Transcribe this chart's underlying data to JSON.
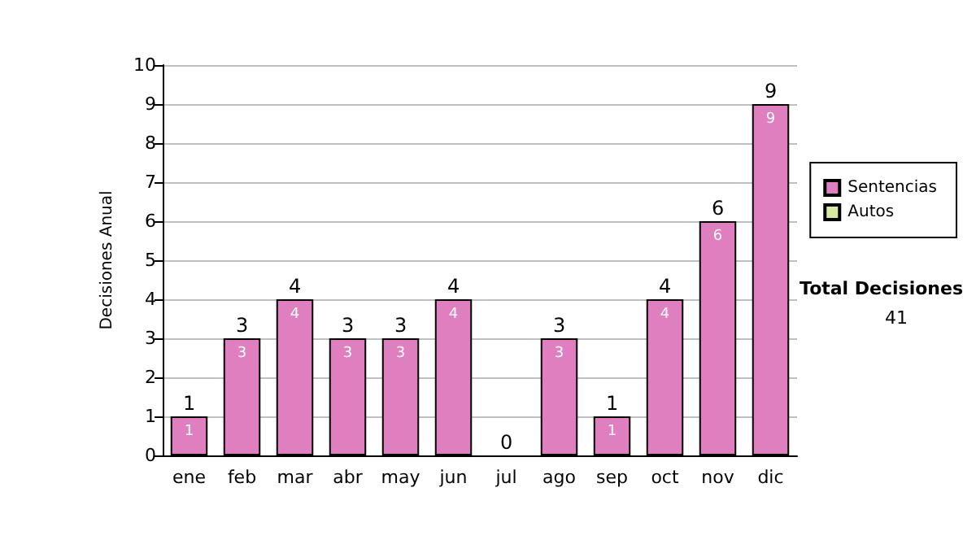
{
  "chart_data": {
    "type": "bar",
    "stacked": true,
    "ylabel": "Decisiones Anual",
    "categories": [
      "ene",
      "feb",
      "mar",
      "abr",
      "may",
      "jun",
      "jul",
      "ago",
      "sep",
      "oct",
      "nov",
      "dic"
    ],
    "series": [
      {
        "name": "Sentencias",
        "color": "#e07fc0",
        "values": [
          1,
          3,
          4,
          3,
          3,
          4,
          0,
          3,
          1,
          4,
          6,
          9
        ],
        "value_labels": [
          "1",
          "3",
          "4",
          "3",
          "3",
          "4",
          null,
          "3",
          "1",
          "4",
          "6",
          "9"
        ]
      },
      {
        "name": "Autos",
        "color": "#d6eaa2",
        "values": [
          0,
          0,
          0,
          0,
          0,
          0,
          0,
          0,
          0,
          0,
          0,
          0
        ]
      }
    ],
    "totals": [
      "1",
      "3",
      "4",
      "3",
      "3",
      "4",
      "0",
      "3",
      "1",
      "4",
      "6",
      "9"
    ],
    "ylim": [
      0,
      10
    ],
    "yticks": [
      0,
      1,
      2,
      3,
      4,
      5,
      6,
      7,
      8,
      9,
      10
    ],
    "grid": "y",
    "legend": "right",
    "annotations": [
      "Total Decisiones",
      "41"
    ]
  }
}
